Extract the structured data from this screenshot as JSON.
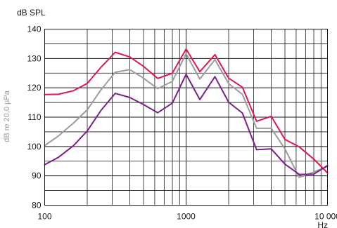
{
  "chart_data": {
    "type": "line",
    "ylabel_top": "dB SPL",
    "ylabel_side": "dB re 20,0 µPa",
    "xlabel": "Hz",
    "x_scale": "log",
    "xlim": [
      100,
      10000
    ],
    "ylim": [
      80,
      140
    ],
    "x_ticks": [
      {
        "value": 100,
        "label": "100"
      },
      {
        "value": 1000,
        "label": "1000"
      },
      {
        "value": 10000,
        "label": "10 000"
      }
    ],
    "y_ticks": [
      {
        "value": 80,
        "label": "80"
      },
      {
        "value": 90,
        "label": "90"
      },
      {
        "value": 100,
        "label": "100"
      },
      {
        "value": 110,
        "label": "110"
      },
      {
        "value": 120,
        "label": "120"
      },
      {
        "value": 130,
        "label": "130"
      },
      {
        "value": 140,
        "label": "140"
      }
    ],
    "grid": true,
    "series": [
      {
        "color": "#e0184f",
        "points": [
          [
            100,
            117.7
          ],
          [
            125,
            117.8
          ],
          [
            160,
            119
          ],
          [
            200,
            121.5
          ],
          [
            250,
            127
          ],
          [
            315,
            132.1
          ],
          [
            400,
            130.5
          ],
          [
            500,
            127.3
          ],
          [
            630,
            123.2
          ],
          [
            800,
            125
          ],
          [
            1000,
            133.2
          ],
          [
            1250,
            125.5
          ],
          [
            1600,
            131.3
          ],
          [
            2000,
            123.3
          ],
          [
            2500,
            120.2
          ],
          [
            3150,
            108.6
          ],
          [
            4000,
            110.3
          ],
          [
            5000,
            102.4
          ],
          [
            6300,
            99.9
          ],
          [
            8000,
            95.7
          ],
          [
            10000,
            91
          ]
        ]
      },
      {
        "color": "#9c9c9c",
        "points": [
          [
            100,
            100.3
          ],
          [
            125,
            103.6
          ],
          [
            160,
            108
          ],
          [
            200,
            112.5
          ],
          [
            250,
            119.3
          ],
          [
            315,
            125.3
          ],
          [
            400,
            126.2
          ],
          [
            500,
            123.3
          ],
          [
            630,
            119.7
          ],
          [
            800,
            122.2
          ],
          [
            1000,
            131.6
          ],
          [
            1250,
            123
          ],
          [
            1600,
            129.6
          ],
          [
            2000,
            121.4
          ],
          [
            2500,
            117.8
          ],
          [
            3150,
            106.2
          ],
          [
            4000,
            106.2
          ],
          [
            5000,
            99.2
          ],
          [
            6300,
            89.5
          ],
          [
            8000,
            91.3
          ],
          [
            10000,
            93.2
          ]
        ]
      },
      {
        "color": "#7a1e8c",
        "points": [
          [
            100,
            93.8
          ],
          [
            125,
            96.3
          ],
          [
            160,
            100.3
          ],
          [
            200,
            105.3
          ],
          [
            250,
            112.3
          ],
          [
            315,
            118.1
          ],
          [
            400,
            116.7
          ],
          [
            500,
            114.3
          ],
          [
            630,
            111.5
          ],
          [
            800,
            114.8
          ],
          [
            1000,
            124.6
          ],
          [
            1250,
            116
          ],
          [
            1600,
            123.8
          ],
          [
            2000,
            115.1
          ],
          [
            2500,
            111.4
          ],
          [
            3150,
            98.9
          ],
          [
            4000,
            99.2
          ],
          [
            5000,
            94
          ],
          [
            6300,
            90.5
          ],
          [
            8000,
            90.6
          ],
          [
            10000,
            93.5
          ]
        ]
      }
    ]
  }
}
